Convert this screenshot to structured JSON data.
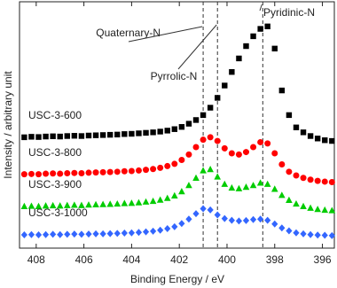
{
  "chart_data": {
    "type": "scatter",
    "xlabel": "Binding Energy / eV",
    "ylabel": "Intensity / arbitrary unit",
    "xlim": [
      408.7,
      395.5
    ],
    "ylim": [
      0,
      100
    ],
    "xticks": [
      408,
      406,
      404,
      402,
      400,
      398,
      396
    ],
    "x": [
      408.5,
      408.2,
      407.9,
      407.6,
      407.3,
      407.0,
      406.7,
      406.4,
      406.1,
      405.8,
      405.5,
      405.2,
      404.9,
      404.6,
      404.3,
      404.0,
      403.7,
      403.4,
      403.1,
      402.8,
      402.5,
      402.2,
      401.9,
      401.6,
      401.3,
      401.0,
      400.7,
      400.4,
      400.1,
      399.8,
      399.5,
      399.2,
      398.9,
      398.6,
      398.3,
      398.0,
      397.7,
      397.4,
      397.1,
      396.8,
      396.5,
      396.2,
      395.9,
      395.6
    ],
    "series": [
      {
        "name": "USC-3-600",
        "color": "#000000",
        "marker": "square",
        "values": [
          45.0,
          45.2,
          45.1,
          45.3,
          45.4,
          45.3,
          45.5,
          45.6,
          45.5,
          45.7,
          45.8,
          45.9,
          46.0,
          46.1,
          46.3,
          46.4,
          46.6,
          46.8,
          47.0,
          47.3,
          47.7,
          48.3,
          49.2,
          50.5,
          52.0,
          54.0,
          57.0,
          61.0,
          66.0,
          71.5,
          77.0,
          82.0,
          86.0,
          89.0,
          90.0,
          81.0,
          64.0,
          54.0,
          49.0,
          47.0,
          45.5,
          44.5,
          43.8,
          43.5
        ]
      },
      {
        "name": "USC-3-800",
        "color": "#ff0000",
        "marker": "circle",
        "values": [
          30.0,
          30.1,
          30.0,
          30.2,
          30.3,
          30.2,
          30.4,
          30.5,
          30.4,
          30.6,
          30.7,
          30.8,
          30.9,
          31.0,
          31.2,
          31.3,
          31.5,
          31.8,
          32.1,
          32.6,
          33.3,
          34.2,
          35.8,
          38.0,
          41.0,
          44.0,
          45.0,
          43.5,
          40.5,
          38.5,
          38.0,
          39.0,
          41.0,
          43.0,
          42.5,
          38.5,
          34.0,
          31.0,
          29.5,
          28.5,
          27.8,
          27.3,
          27.0,
          26.8
        ]
      },
      {
        "name": "USC-3-900",
        "color": "#00cc00",
        "marker": "triangle",
        "values": [
          17.0,
          17.1,
          17.0,
          17.2,
          17.3,
          17.2,
          17.4,
          17.5,
          17.4,
          17.6,
          17.7,
          17.8,
          17.9,
          18.0,
          18.2,
          18.3,
          18.5,
          18.8,
          19.1,
          19.6,
          20.3,
          21.3,
          23.0,
          25.5,
          28.5,
          31.5,
          32.0,
          29.0,
          26.0,
          24.5,
          24.2,
          24.8,
          25.5,
          26.5,
          26.0,
          24.0,
          21.5,
          19.5,
          18.0,
          17.0,
          16.3,
          15.8,
          15.5,
          15.3
        ]
      },
      {
        "name": "USC-3-1000",
        "color": "#3366ff",
        "marker": "diamond",
        "values": [
          5.4,
          5.5,
          5.4,
          5.5,
          5.6,
          5.5,
          5.6,
          5.7,
          5.6,
          5.7,
          5.8,
          5.8,
          5.9,
          6.0,
          6.1,
          6.2,
          6.4,
          6.6,
          6.9,
          7.3,
          7.9,
          8.7,
          10.0,
          11.8,
          14.0,
          16.0,
          15.5,
          13.5,
          12.0,
          11.3,
          11.0,
          11.2,
          11.6,
          11.8,
          11.3,
          9.8,
          8.2,
          7.0,
          6.2,
          5.8,
          5.5,
          5.3,
          5.2,
          5.1
        ]
      }
    ],
    "annotations": [
      {
        "label": "Quaternary-N",
        "x": 401.0
      },
      {
        "label": "Pyrrolic-N",
        "x": 400.4
      },
      {
        "label": "Pyridinic-N",
        "x": 398.5
      }
    ]
  }
}
